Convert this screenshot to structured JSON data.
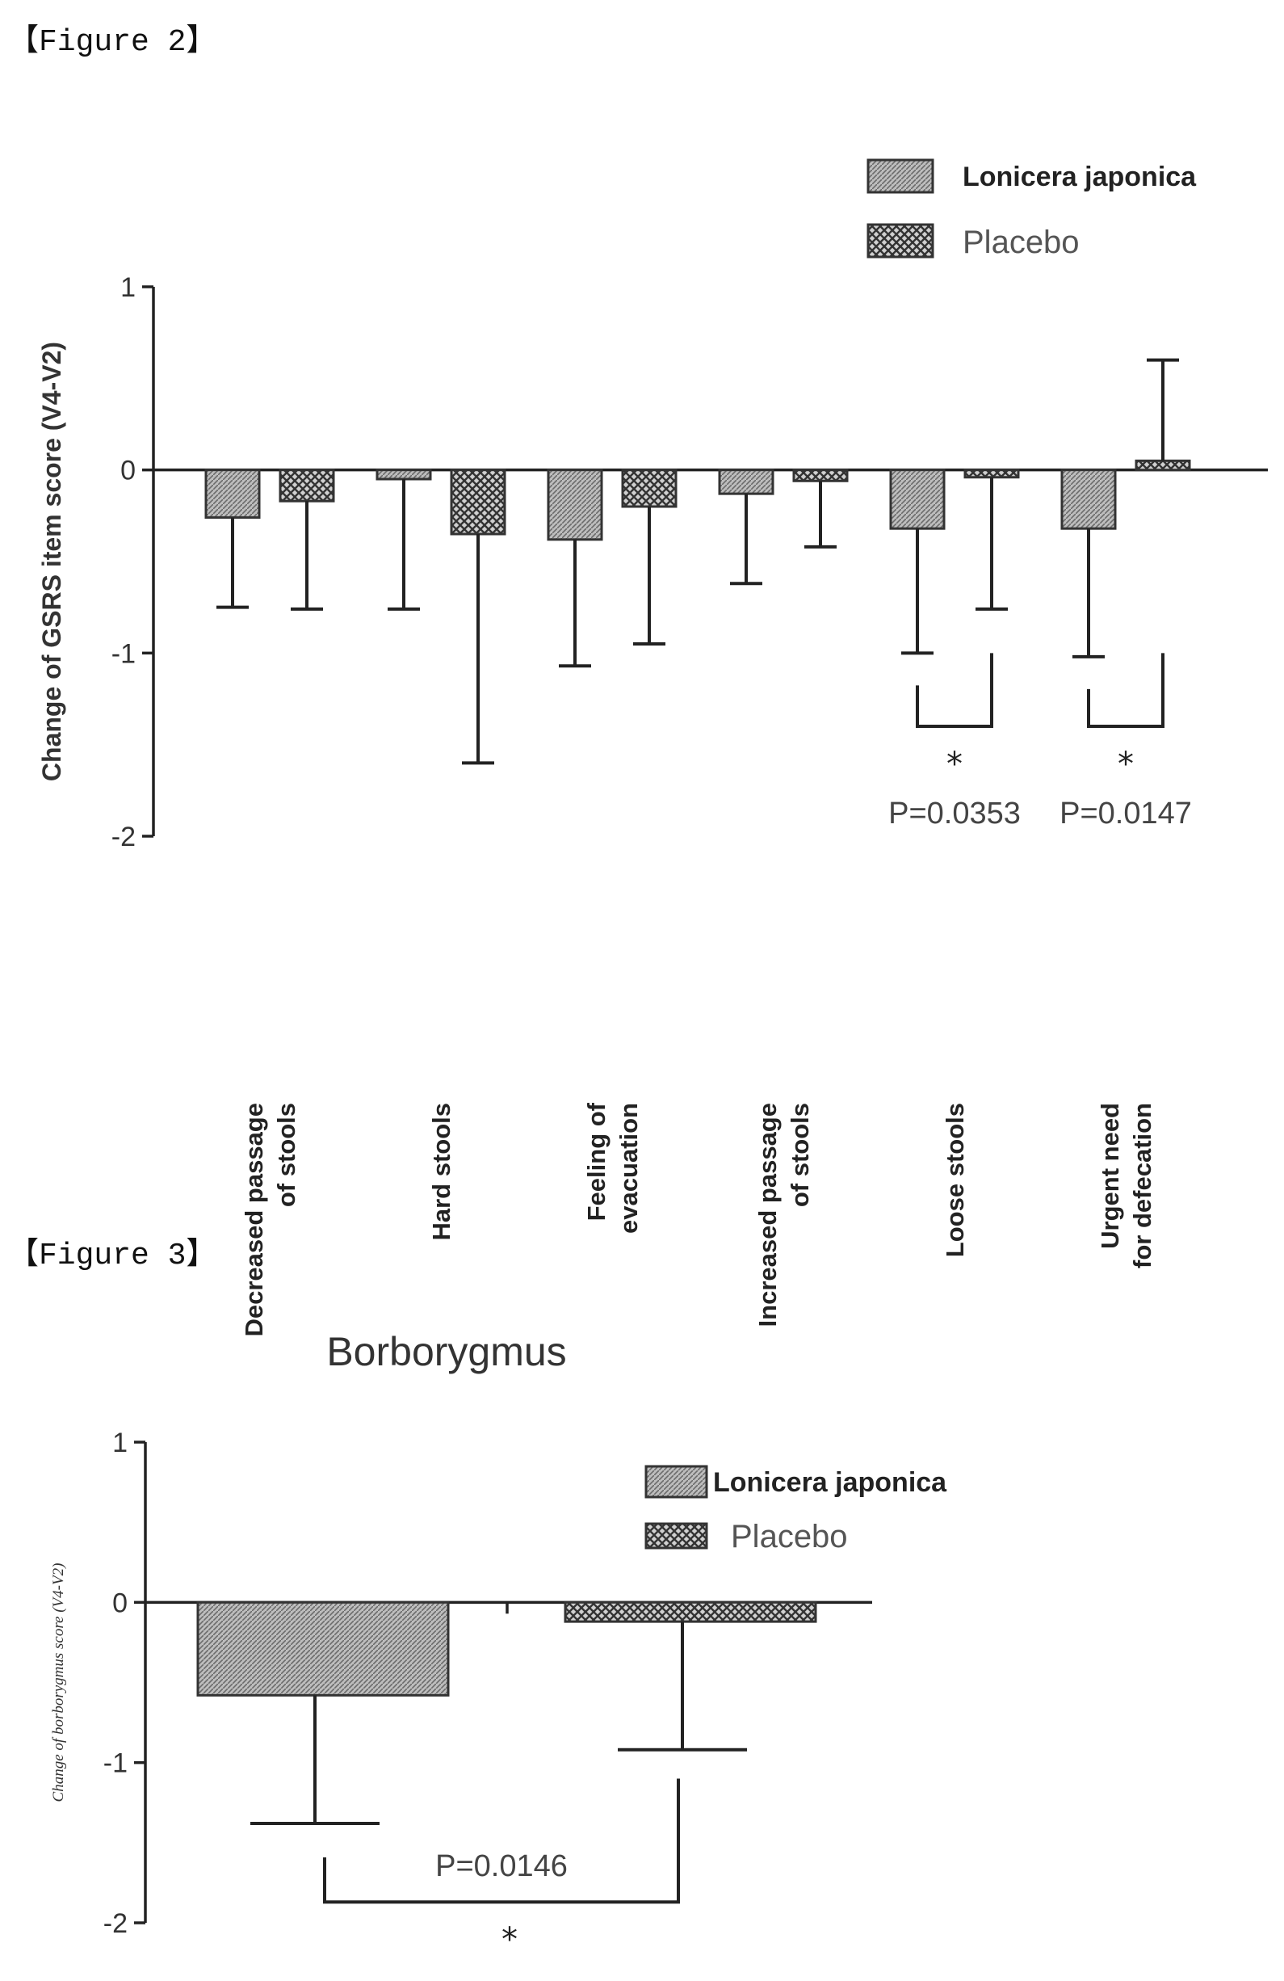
{
  "figures": {
    "fig2_label": "【Figure 2】",
    "fig3_label": "【Figure 3】"
  },
  "chart_data": [
    {
      "type": "bar",
      "ylabel": "Change of GSRS item score (V4-V2)",
      "ylim": [
        -2,
        1
      ],
      "yticks": [
        "1",
        "0",
        "-1",
        "-2"
      ],
      "categories": [
        [
          "Decreased passage",
          "of stools"
        ],
        [
          "Hard stools"
        ],
        [
          "Feeling of",
          "evacuation"
        ],
        [
          "Increased passage",
          "of stools"
        ],
        [
          "Loose stools"
        ],
        [
          "Urgent need",
          "for defecation"
        ]
      ],
      "series": [
        {
          "name": "Lonicera japonica",
          "values": [
            -0.26,
            -0.05,
            -0.38,
            -0.13,
            -0.32,
            -0.32
          ],
          "error_low": [
            -0.75,
            -0.76,
            -1.07,
            -0.62,
            -1.0,
            -1.02
          ]
        },
        {
          "name": "Placebo",
          "values": [
            -0.17,
            -0.35,
            -0.2,
            -0.06,
            -0.04,
            0.05
          ],
          "error_low": [
            -0.76,
            -1.6,
            -0.95,
            -0.42,
            -0.76,
            0.6
          ]
        }
      ],
      "significance": [
        {
          "category": 4,
          "star": "*",
          "p_text": "P=0.0353"
        },
        {
          "category": 5,
          "star": "*",
          "p_text": "P=0.0147"
        }
      ],
      "legend": "top-right",
      "colors": {
        "lonicera": "#9a9a9a",
        "placebo": "#6a6a6a"
      }
    },
    {
      "type": "bar",
      "title": "Borborygmus",
      "ylabel": "Change of borborygmus score (V4-V2)",
      "ylim": [
        -2,
        1
      ],
      "yticks": [
        "1",
        "0",
        "-1",
        "-2"
      ],
      "categories": [
        "Lonicera japonica",
        "Placebo"
      ],
      "values": [
        -0.58,
        -0.12
      ],
      "error_low": [
        -1.38,
        -0.92
      ],
      "significance": {
        "star": "*",
        "p_text": "P=0.0146"
      },
      "legend": "top-right",
      "colors": {
        "lonicera": "#9a9a9a",
        "placebo": "#6a6a6a"
      }
    }
  ],
  "legend": {
    "lonicera": "Lonicera japonica",
    "placebo": "Placebo"
  }
}
